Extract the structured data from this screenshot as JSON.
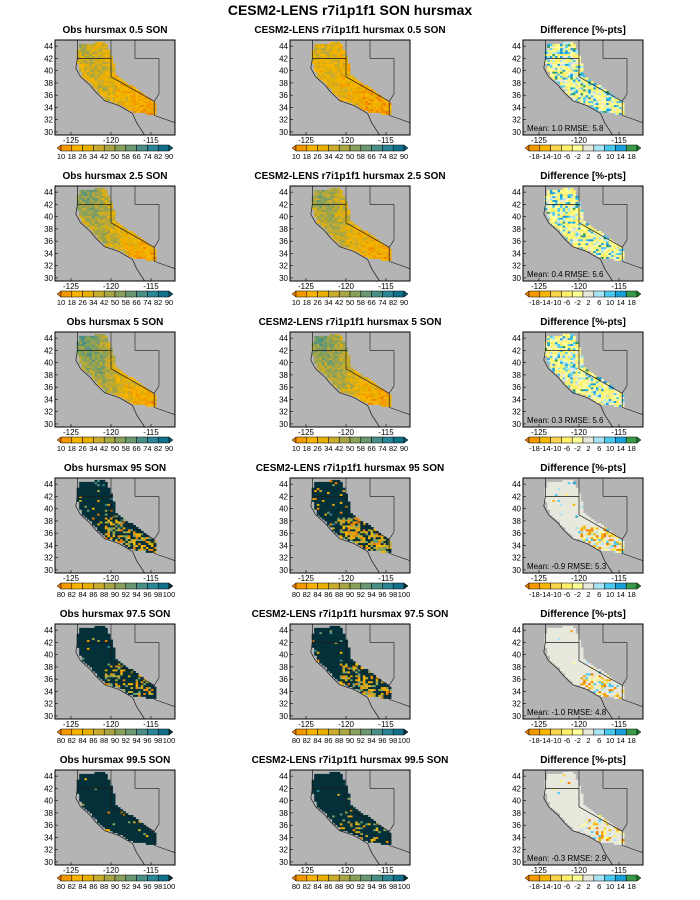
{
  "title": "CESM2-LENS r7i1p1f1 SON hursmax",
  "colors": {
    "ocean": "#b4b4b4",
    "land_mask": "#bdbdbd",
    "frame": "#000000",
    "border": "#1a1a1a",
    "dark_cell": "#04303a"
  },
  "scales": {
    "hurs_low": {
      "ticks": [
        "10",
        "18",
        "26",
        "34",
        "42",
        "50",
        "58",
        "66",
        "74",
        "82",
        "90"
      ],
      "colors": [
        "#f07c00",
        "#f49a00",
        "#f7b400",
        "#e8b000",
        "#c9ac2e",
        "#a8a545",
        "#88a05a",
        "#6a9870",
        "#4a8f86",
        "#2a8596",
        "#12708a",
        "#045a78"
      ]
    },
    "hurs_high": {
      "ticks": [
        "80",
        "82",
        "84",
        "86",
        "88",
        "90",
        "92",
        "94",
        "96",
        "98",
        "100"
      ],
      "colors": [
        "#f07c00",
        "#f49a00",
        "#f7b400",
        "#e8b000",
        "#c9ac2e",
        "#a8a545",
        "#88a05a",
        "#6a9870",
        "#4a8f86",
        "#2a8596",
        "#12708a",
        "#02303a"
      ]
    },
    "diff": {
      "ticks": [
        "-18",
        "-14",
        "-10",
        "-6",
        "-2",
        "2",
        "6",
        "10",
        "14",
        "18"
      ],
      "colors": [
        "#f07c00",
        "#f49a00",
        "#f8b800",
        "#fad44a",
        "#fdf06a",
        "#ffff9a",
        "#e8e8dc",
        "#a8e4f4",
        "#4cc8ee",
        "#1b9fd8",
        "#3a9a4a",
        "#1f7a2a"
      ]
    }
  },
  "chart_data": [
    {
      "type": "heatmap",
      "title": "Obs hursmax 0.5 SON",
      "scale": "hurs_low",
      "pattern": "low",
      "intensity": 0.35,
      "stats": ""
    },
    {
      "type": "heatmap",
      "title": "CESM2-LENS r7i1p1f1 hursmax 0.5 SON",
      "scale": "hurs_low",
      "pattern": "low",
      "intensity": 0.25,
      "stats": ""
    },
    {
      "type": "heatmap",
      "title": "Difference [%-pts]",
      "scale": "diff",
      "pattern": "diff",
      "intensity": 0.6,
      "stats": "Mean: 1.0  RMSE: 5.8"
    },
    {
      "type": "heatmap",
      "title": "Obs hursmax 2.5 SON",
      "scale": "hurs_low",
      "pattern": "low",
      "intensity": 0.55,
      "stats": ""
    },
    {
      "type": "heatmap",
      "title": "CESM2-LENS r7i1p1f1 hursmax 2.5 SON",
      "scale": "hurs_low",
      "pattern": "low",
      "intensity": 0.5,
      "stats": ""
    },
    {
      "type": "heatmap",
      "title": "Difference [%-pts]",
      "scale": "diff",
      "pattern": "diff",
      "intensity": 0.5,
      "stats": "Mean: 0.4  RMSE: 5.6"
    },
    {
      "type": "heatmap",
      "title": "Obs hursmax 5 SON",
      "scale": "hurs_low",
      "pattern": "low",
      "intensity": 0.65,
      "stats": ""
    },
    {
      "type": "heatmap",
      "title": "CESM2-LENS r7i1p1f1 hursmax 5 SON",
      "scale": "hurs_low",
      "pattern": "low",
      "intensity": 0.6,
      "stats": ""
    },
    {
      "type": "heatmap",
      "title": "Difference [%-pts]",
      "scale": "diff",
      "pattern": "diff",
      "intensity": 0.45,
      "stats": "Mean: 0.3  RMSE: 5.6"
    },
    {
      "type": "heatmap",
      "title": "Obs hursmax 95 SON",
      "scale": "hurs_high",
      "pattern": "high",
      "intensity": 0.35,
      "stats": ""
    },
    {
      "type": "heatmap",
      "title": "CESM2-LENS r7i1p1f1 hursmax 95 SON",
      "scale": "hurs_high",
      "pattern": "high",
      "intensity": 0.45,
      "stats": ""
    },
    {
      "type": "heatmap",
      "title": "Difference [%-pts]",
      "scale": "diff",
      "pattern": "diffhigh",
      "intensity": 0.4,
      "stats": "Mean: -0.9  RMSE: 5.3"
    },
    {
      "type": "heatmap",
      "title": "Obs hursmax 97.5 SON",
      "scale": "hurs_high",
      "pattern": "high",
      "intensity": 0.2,
      "stats": ""
    },
    {
      "type": "heatmap",
      "title": "CESM2-LENS r7i1p1f1 hursmax 97.5 SON",
      "scale": "hurs_high",
      "pattern": "high",
      "intensity": 0.3,
      "stats": ""
    },
    {
      "type": "heatmap",
      "title": "Difference [%-pts]",
      "scale": "diff",
      "pattern": "diffhigh",
      "intensity": 0.3,
      "stats": "Mean: -1.0  RMSE: 4.8"
    },
    {
      "type": "heatmap",
      "title": "Obs hursmax 99.5 SON",
      "scale": "hurs_high",
      "pattern": "high",
      "intensity": 0.05,
      "stats": ""
    },
    {
      "type": "heatmap",
      "title": "CESM2-LENS r7i1p1f1 hursmax 99.5 SON",
      "scale": "hurs_high",
      "pattern": "high",
      "intensity": 0.12,
      "stats": ""
    },
    {
      "type": "heatmap",
      "title": "Difference [%-pts]",
      "scale": "diff",
      "pattern": "diffhigh",
      "intensity": 0.18,
      "stats": "Mean: -0.3  RMSE: 2.9"
    }
  ],
  "axes": {
    "lat_ticks": [
      "30",
      "32",
      "34",
      "36",
      "38",
      "40",
      "42",
      "44"
    ],
    "lon_ticks": [
      "-125",
      "-120",
      "-115"
    ],
    "lat_range": [
      29.5,
      45.0
    ],
    "lon_range": [
      -127.0,
      -112.0
    ]
  }
}
